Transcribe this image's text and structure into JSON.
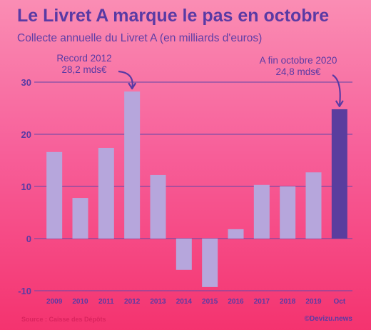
{
  "header": {
    "title": "Le Livret A marque le pas en octobre",
    "subtitle": "Collecte annuelle du Livret A (en milliards d'euros)"
  },
  "footer": {
    "source": "Source : Caisse des Dépôts",
    "brand": "©Devizu.news"
  },
  "chart_data": {
    "type": "bar",
    "categories": [
      "2009",
      "2010",
      "2011",
      "2012",
      "2013",
      "2014",
      "2015",
      "2016",
      "2017",
      "2018",
      "2019",
      "Oct"
    ],
    "values": [
      16.6,
      7.8,
      17.4,
      28.2,
      12.2,
      -6.0,
      -9.3,
      1.8,
      10.3,
      10.0,
      12.7,
      24.8
    ],
    "ylim": [
      -10,
      30
    ],
    "yticks": [
      -10,
      0,
      10,
      20,
      30
    ],
    "grid": true,
    "colors": {
      "bar": "#b6a6dc",
      "highlight": "#5a3d9e",
      "axis": "#6a4aa8",
      "text": "#5a3aa4"
    },
    "highlight_index": 11,
    "annotations": [
      {
        "index": 3,
        "lines": [
          "Record 2012",
          "28,2 mds€"
        ]
      },
      {
        "index": 11,
        "lines": [
          "A fin octobre 2020",
          "24,8 mds€"
        ]
      }
    ]
  }
}
